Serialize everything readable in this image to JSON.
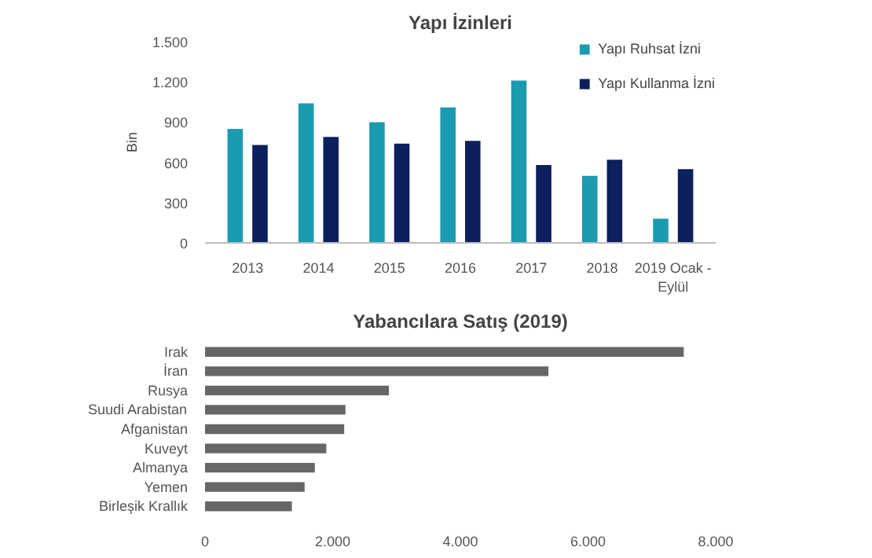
{
  "chart_data": [
    {
      "type": "bar",
      "title": "Yapı İzinleri",
      "ylabel": "Bin",
      "categories": [
        "2013",
        "2014",
        "2015",
        "2016",
        "2017",
        "2018",
        "2019 Ocak - Eylül"
      ],
      "series": [
        {
          "name": "Yapı Ruhsat İzni",
          "color": "#1a9bb0",
          "values": [
            850,
            1040,
            900,
            1010,
            1210,
            500,
            180
          ]
        },
        {
          "name": "Yapı Kullanma İzni",
          "color": "#0d1f5c",
          "values": [
            730,
            790,
            740,
            760,
            580,
            620,
            550
          ]
        }
      ],
      "ylim": [
        0,
        1500
      ],
      "yticks": [
        0,
        300,
        600,
        900,
        {
          "value": 1200,
          "label": "1.200"
        },
        {
          "value": 1500,
          "label": "1.500"
        }
      ],
      "grid": false,
      "legend": "top right"
    },
    {
      "type": "bar",
      "orientation": "horizontal",
      "title": "Yabancılara Satış (2019)",
      "categories": [
        "Irak",
        "İran",
        "Rusya",
        "Suudi Arabistan",
        "Afganistan",
        "Kuveyt",
        "Almanya",
        "Yemen",
        "Birleşik Krallık"
      ],
      "series": [
        {
          "color": "#666666",
          "values": [
            7500,
            5380,
            2880,
            2200,
            2180,
            1900,
            1720,
            1560,
            1360
          ]
        }
      ],
      "xlim": [
        0,
        8000
      ],
      "xticks": [
        0,
        {
          "value": 2000,
          "label": "2.000"
        },
        {
          "value": 4000,
          "label": "4.000"
        },
        {
          "value": 6000,
          "label": "6.000"
        },
        {
          "value": 8000,
          "label": "8.000"
        }
      ],
      "grid": false
    }
  ]
}
